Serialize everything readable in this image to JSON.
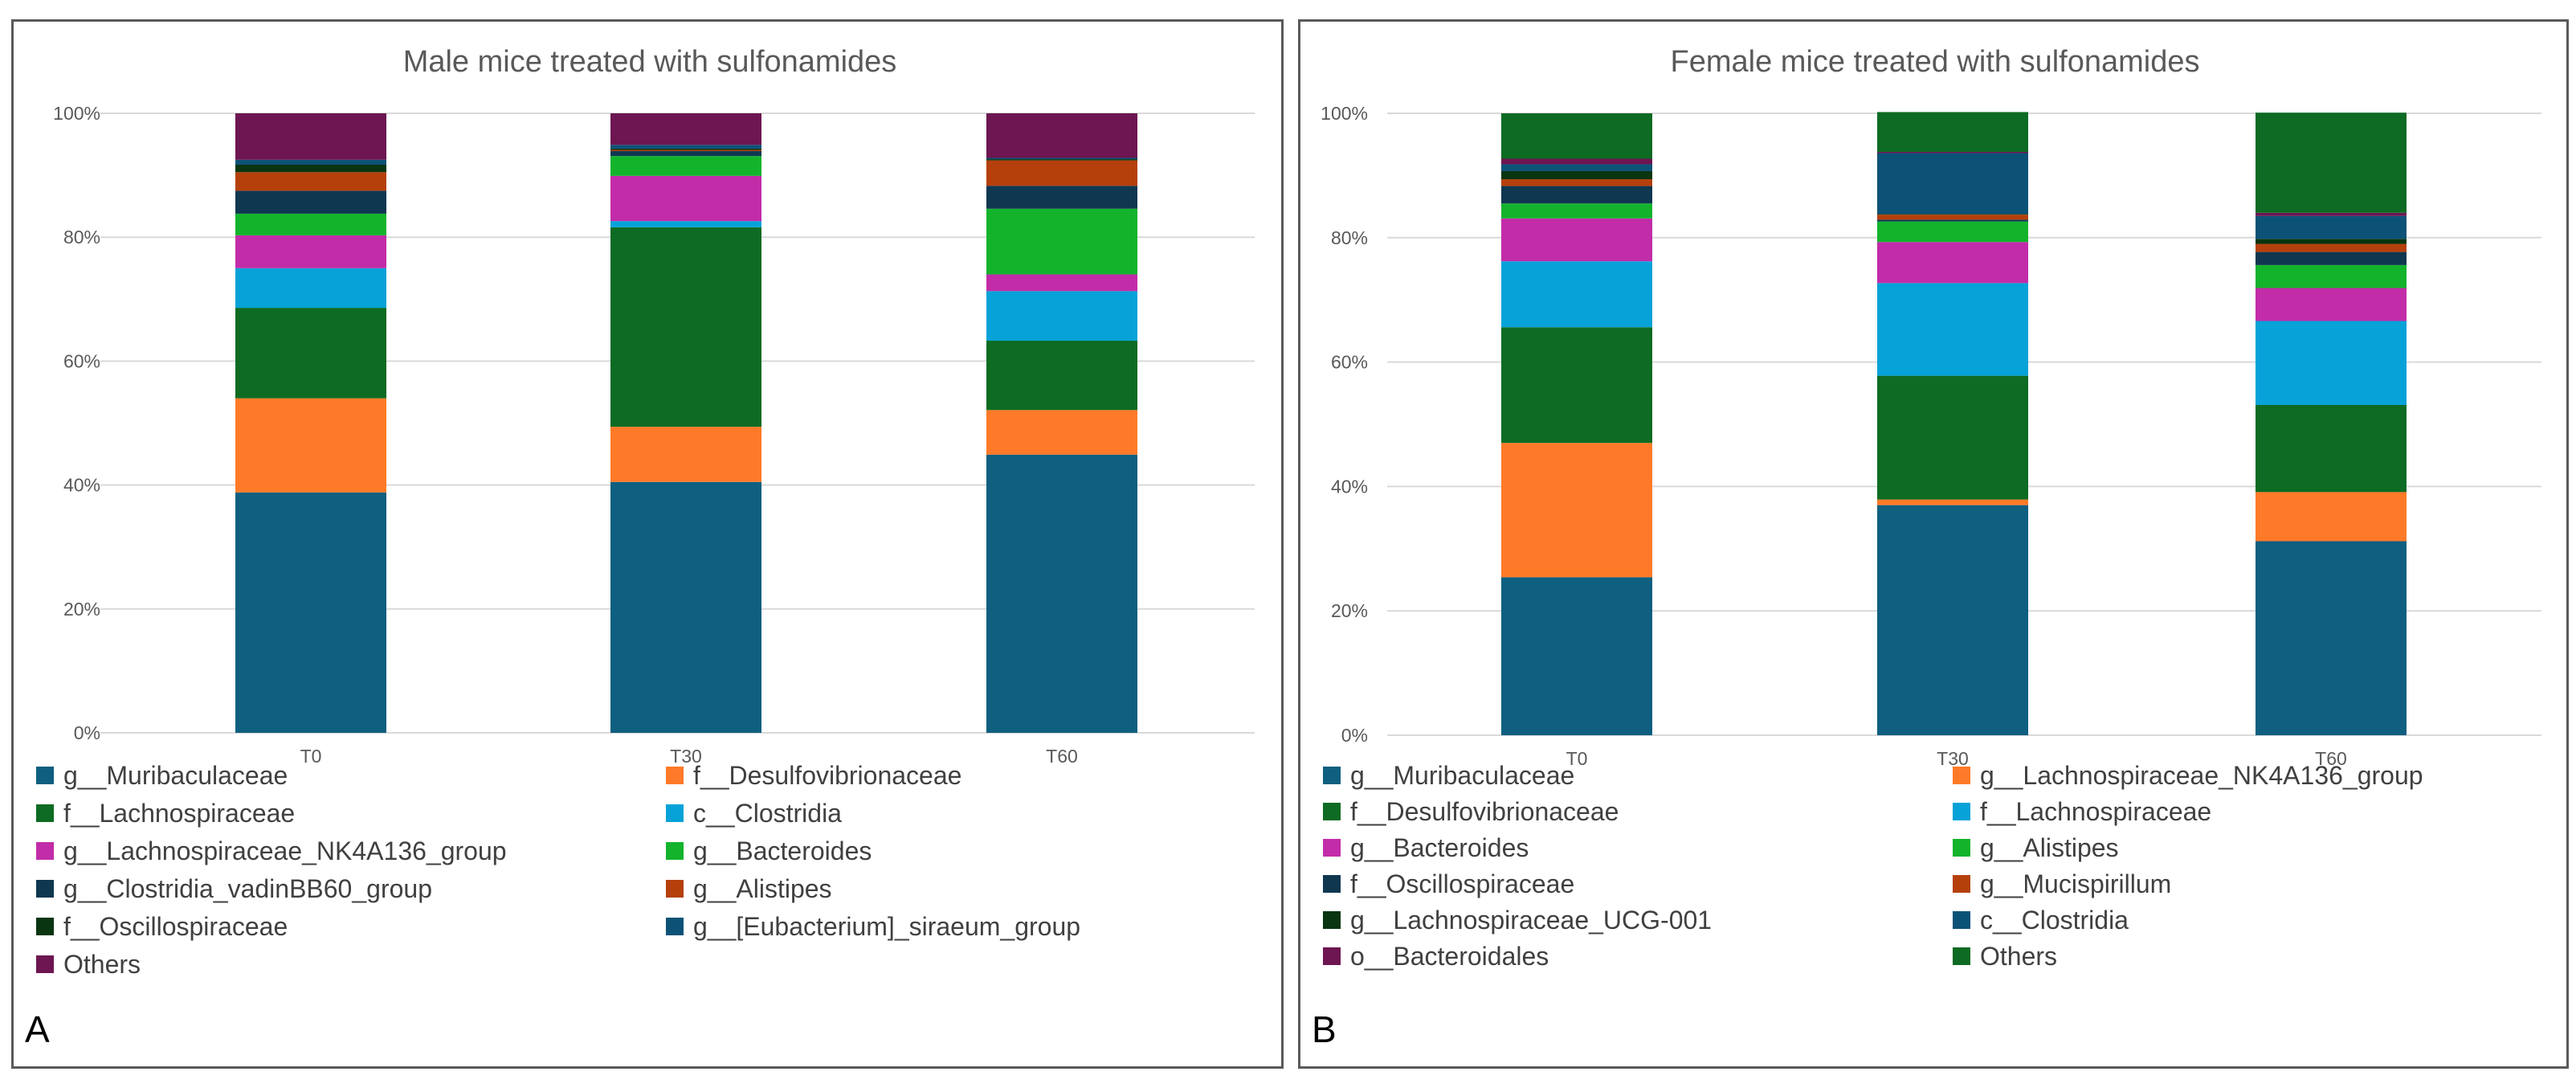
{
  "chart_data": [
    {
      "type": "bar",
      "stacked": true,
      "panel_label": "A",
      "title": "Male mice treated with sulfonamides",
      "categories": [
        "T0",
        "T30",
        "T60"
      ],
      "yticks": [
        "0%",
        "20%",
        "40%",
        "60%",
        "80%",
        "100%"
      ],
      "ylim": [
        0,
        100
      ],
      "xlabel": "",
      "ylabel": "",
      "grid": true,
      "legend_position": "bottom",
      "series": [
        {
          "name": "g__Muribaculaceae",
          "color": "#0e5f80",
          "values": [
            38.8,
            40.5,
            44.9
          ]
        },
        {
          "name": "f__Desulfovibrionaceae",
          "color": "#ff7a28",
          "values": [
            15.2,
            8.9,
            7.2
          ]
        },
        {
          "name": "f__Lachnospiraceae",
          "color": "#0d6b23",
          "values": [
            14.6,
            32.2,
            11.2
          ]
        },
        {
          "name": "c__Clostridia",
          "color": "#06a2d8",
          "values": [
            6.4,
            1.0,
            8.0
          ]
        },
        {
          "name": "g__Lachnospiraceae_NK4A136_group",
          "color": "#c22ca8",
          "values": [
            5.3,
            7.3,
            2.7
          ]
        },
        {
          "name": "g__Bacteroides",
          "color": "#13b32c",
          "values": [
            3.5,
            3.2,
            10.6
          ]
        },
        {
          "name": "g__Clostridia_vadinBB60_group",
          "color": "#0f3750",
          "values": [
            3.7,
            0.8,
            3.7
          ]
        },
        {
          "name": "g__Alistipes",
          "color": "#b5400b",
          "values": [
            3.0,
            0.2,
            4.1
          ]
        },
        {
          "name": "f__Oscillospiraceae",
          "color": "#093511",
          "values": [
            1.2,
            0.2,
            0.2
          ]
        },
        {
          "name": "g__[Eubacterium]_siraeum_group",
          "color": "#0c5277",
          "values": [
            0.8,
            0.6,
            0.2
          ]
        },
        {
          "name": "Others",
          "color": "#6d1651",
          "values": [
            7.5,
            5.1,
            7.2
          ]
        }
      ]
    },
    {
      "type": "bar",
      "stacked": true,
      "panel_label": "B",
      "title": "Female mice treated with sulfonamides",
      "categories": [
        "T0",
        "T30",
        "T60"
      ],
      "yticks": [
        "0%",
        "20%",
        "40%",
        "60%",
        "80%",
        "100%"
      ],
      "ylim": [
        0,
        100
      ],
      "xlabel": "",
      "ylabel": "",
      "grid": true,
      "legend_position": "bottom",
      "series": [
        {
          "name": "g__Muribaculaceae",
          "color": "#0e5f80",
          "values": [
            25.4,
            37.0,
            31.2
          ]
        },
        {
          "name": "g__Lachnospiraceae_NK4A136_group",
          "color": "#ff7a28",
          "values": [
            21.6,
            0.9,
            7.9
          ]
        },
        {
          "name": "f__Desulfovibrionaceae",
          "color": "#0d6b23",
          "values": [
            18.6,
            19.9,
            14.0
          ]
        },
        {
          "name": "f__Lachnospiraceae",
          "color": "#06a2d8",
          "values": [
            10.6,
            14.9,
            13.5
          ]
        },
        {
          "name": "g__Bacteroides",
          "color": "#c22ca8",
          "values": [
            6.9,
            6.6,
            5.3
          ]
        },
        {
          "name": "g__Alistipes",
          "color": "#13b32c",
          "values": [
            2.4,
            3.3,
            3.7
          ]
        },
        {
          "name": "f__Oscillospiraceae",
          "color": "#0f3750",
          "values": [
            2.8,
            0.3,
            2.1
          ]
        },
        {
          "name": "g__Mucispirillum",
          "color": "#b5400b",
          "values": [
            1.1,
            0.8,
            1.3
          ]
        },
        {
          "name": "g__Lachnospiraceae_UCG-001",
          "color": "#093511",
          "values": [
            1.3,
            0.1,
            0.8
          ]
        },
        {
          "name": "c__Clostridia",
          "color": "#0c5277",
          "values": [
            1.1,
            9.8,
            3.7
          ]
        },
        {
          "name": "o__Bacteroidales",
          "color": "#6d1651",
          "values": [
            0.9,
            0.2,
            0.5
          ]
        },
        {
          "name": "Others",
          "color": "#0d6b23",
          "values": [
            7.3,
            6.4,
            16.1
          ]
        }
      ]
    }
  ]
}
